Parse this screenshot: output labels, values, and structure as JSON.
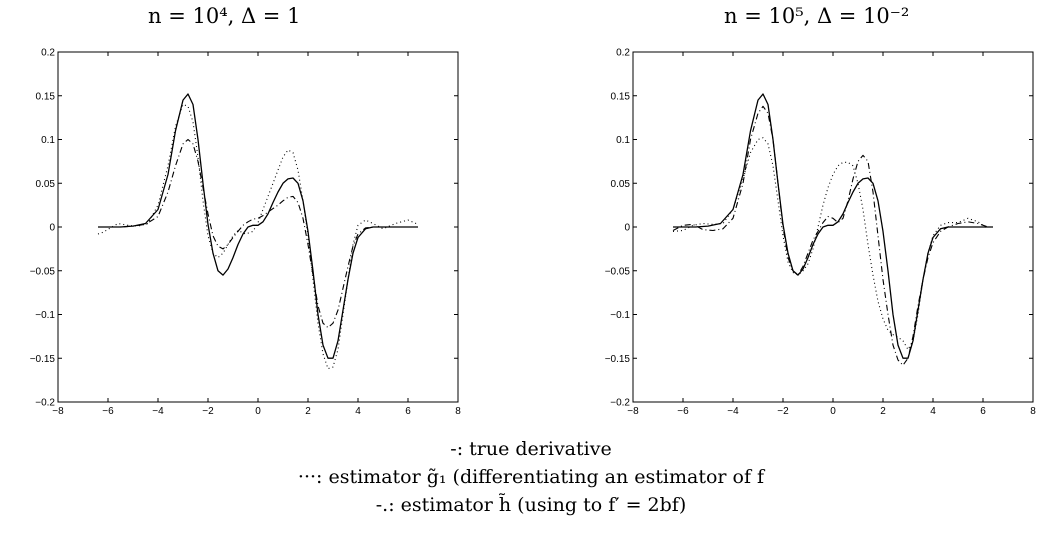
{
  "legend": {
    "line1": "-: true derivative",
    "line2": "···: estimator g̃₁ (differentiating an estimator of f",
    "line3": "-.: estimator h̃ (using to f′ = 2bf)"
  },
  "chart_data": [
    {
      "type": "line",
      "title": "n = 10⁴, Δ = 1",
      "xlim": [
        -8,
        8
      ],
      "ylim": [
        -0.2,
        0.2
      ],
      "xticks": [
        -8,
        -6,
        -4,
        -2,
        0,
        2,
        4,
        6,
        8
      ],
      "yticks": [
        -0.2,
        -0.15,
        -0.1,
        -0.05,
        0,
        0.05,
        0.1,
        0.15,
        0.2
      ],
      "xticklabels": [
        "−8",
        "−6",
        "−4",
        "−2",
        "0",
        "2",
        "4",
        "6",
        "8"
      ],
      "yticklabels": [
        "−0.2",
        "−0.15",
        "−0.1",
        "−0.05",
        "0",
        "0.05",
        "0.1",
        "0.15",
        "0.2"
      ],
      "grid": false,
      "series": [
        {
          "style": "solid",
          "x": [
            -6.4,
            -5.5,
            -5,
            -4.5,
            -4,
            -3.6,
            -3.3,
            -3,
            -2.8,
            -2.6,
            -2.4,
            -2.2,
            -2,
            -1.8,
            -1.6,
            -1.4,
            -1.2,
            -1,
            -0.8,
            -0.6,
            -0.4,
            -0.2,
            0,
            0.2,
            0.4,
            0.6,
            0.8,
            1,
            1.2,
            1.4,
            1.6,
            1.8,
            2,
            2.2,
            2.4,
            2.6,
            2.8,
            3,
            3.2,
            3.4,
            3.6,
            3.8,
            4,
            4.3,
            4.6,
            5,
            5.5,
            6,
            6.4
          ],
          "y": [
            0,
            0,
            0.001,
            0.004,
            0.02,
            0.06,
            0.11,
            0.145,
            0.152,
            0.14,
            0.1,
            0.05,
            0.003,
            -0.03,
            -0.05,
            -0.055,
            -0.048,
            -0.035,
            -0.02,
            -0.008,
            0,
            0.002,
            0.002,
            0.006,
            0.015,
            0.028,
            0.04,
            0.05,
            0.055,
            0.056,
            0.05,
            0.03,
            -0.005,
            -0.05,
            -0.1,
            -0.135,
            -0.15,
            -0.15,
            -0.13,
            -0.095,
            -0.06,
            -0.03,
            -0.012,
            -0.002,
            0,
            0,
            0,
            0,
            0
          ]
        },
        {
          "style": "dotted",
          "x": [
            -6.4,
            -6.2,
            -5.9,
            -5.6,
            -5.2,
            -4.8,
            -4.4,
            -4,
            -3.6,
            -3.3,
            -3,
            -2.8,
            -2.6,
            -2.4,
            -2.2,
            -2,
            -1.8,
            -1.6,
            -1.4,
            -1.2,
            -1,
            -0.8,
            -0.5,
            -0.2,
            0,
            0.2,
            0.4,
            0.6,
            0.8,
            1,
            1.2,
            1.4,
            1.6,
            1.8,
            2,
            2.2,
            2.4,
            2.6,
            2.8,
            3,
            3.2,
            3.4,
            3.6,
            3.8,
            4,
            4.3,
            4.6,
            5,
            5.5,
            6,
            6.4
          ],
          "y": [
            -0.008,
            -0.006,
            -0.001,
            0.004,
            0.002,
            0.001,
            0.004,
            0.025,
            0.07,
            0.115,
            0.14,
            0.138,
            0.12,
            0.08,
            0.03,
            -0.01,
            -0.03,
            -0.035,
            -0.03,
            -0.02,
            -0.01,
            -0.004,
            -0.008,
            -0.005,
            0.005,
            0.02,
            0.035,
            0.05,
            0.065,
            0.08,
            0.088,
            0.085,
            0.065,
            0.03,
            -0.01,
            -0.06,
            -0.11,
            -0.145,
            -0.162,
            -0.16,
            -0.14,
            -0.1,
            -0.06,
            -0.02,
            0.002,
            0.008,
            0.004,
            -0.002,
            0.004,
            0.008,
            0.003
          ]
        },
        {
          "style": "dashdot",
          "x": [
            -6.4,
            -5.5,
            -5,
            -4.5,
            -4,
            -3.6,
            -3.3,
            -3,
            -2.8,
            -2.6,
            -2.4,
            -2.2,
            -2,
            -1.8,
            -1.6,
            -1.4,
            -1.2,
            -1,
            -0.8,
            -0.6,
            -0.4,
            -0.2,
            0,
            0.2,
            0.4,
            0.6,
            0.8,
            1,
            1.2,
            1.4,
            1.6,
            1.8,
            2,
            2.2,
            2.4,
            2.6,
            2.8,
            3,
            3.2,
            3.4,
            3.6,
            3.8,
            4,
            4.3,
            4.6,
            5,
            5.5,
            6,
            6.4
          ],
          "y": [
            0,
            0,
            0.001,
            0.003,
            0.012,
            0.04,
            0.07,
            0.095,
            0.1,
            0.095,
            0.075,
            0.045,
            0.015,
            -0.01,
            -0.022,
            -0.025,
            -0.02,
            -0.012,
            -0.005,
            0.002,
            0.006,
            0.009,
            0.01,
            0.013,
            0.017,
            0.021,
            0.025,
            0.03,
            0.034,
            0.035,
            0.028,
            0.01,
            -0.02,
            -0.055,
            -0.09,
            -0.11,
            -0.115,
            -0.11,
            -0.095,
            -0.07,
            -0.045,
            -0.022,
            -0.008,
            -0.001,
            0,
            0,
            0,
            0,
            0
          ]
        }
      ]
    },
    {
      "type": "line",
      "title": "n = 10⁵, Δ = 10⁻²",
      "xlim": [
        -8,
        8
      ],
      "ylim": [
        -0.2,
        0.2
      ],
      "xticks": [
        -8,
        -6,
        -4,
        -2,
        0,
        2,
        4,
        6,
        8
      ],
      "yticks": [
        -0.2,
        -0.15,
        -0.1,
        -0.05,
        0,
        0.05,
        0.1,
        0.15,
        0.2
      ],
      "xticklabels": [
        "−8",
        "−6",
        "−4",
        "−2",
        "0",
        "2",
        "4",
        "6",
        "8"
      ],
      "yticklabels": [
        "−0.2",
        "−0.15",
        "−0.1",
        "−0.05",
        "0",
        "0.05",
        "0.1",
        "0.15",
        "0.2"
      ],
      "grid": false,
      "series": [
        {
          "style": "solid",
          "x": [
            -6.4,
            -5.5,
            -5,
            -4.5,
            -4,
            -3.6,
            -3.3,
            -3,
            -2.8,
            -2.6,
            -2.4,
            -2.2,
            -2,
            -1.8,
            -1.6,
            -1.4,
            -1.2,
            -1,
            -0.8,
            -0.6,
            -0.4,
            -0.2,
            0,
            0.2,
            0.4,
            0.6,
            0.8,
            1,
            1.2,
            1.4,
            1.6,
            1.8,
            2,
            2.2,
            2.4,
            2.6,
            2.8,
            3,
            3.2,
            3.4,
            3.6,
            3.8,
            4,
            4.3,
            4.6,
            5,
            5.5,
            6,
            6.4
          ],
          "y": [
            0,
            0,
            0.001,
            0.004,
            0.02,
            0.06,
            0.11,
            0.145,
            0.152,
            0.14,
            0.1,
            0.05,
            0.003,
            -0.03,
            -0.05,
            -0.055,
            -0.048,
            -0.035,
            -0.02,
            -0.008,
            0,
            0.002,
            0.002,
            0.006,
            0.015,
            0.028,
            0.04,
            0.05,
            0.055,
            0.056,
            0.05,
            0.03,
            -0.005,
            -0.05,
            -0.1,
            -0.135,
            -0.15,
            -0.15,
            -0.13,
            -0.095,
            -0.06,
            -0.03,
            -0.012,
            -0.002,
            0,
            0,
            0,
            0,
            0
          ]
        },
        {
          "style": "dotted",
          "x": [
            -6.4,
            -6,
            -5.6,
            -5.2,
            -4.8,
            -4.4,
            -4,
            -3.6,
            -3.3,
            -3,
            -2.8,
            -2.6,
            -2.4,
            -2.2,
            -2,
            -1.8,
            -1.6,
            -1.4,
            -1.2,
            -1,
            -0.8,
            -0.6,
            -0.4,
            -0.2,
            0,
            0.2,
            0.4,
            0.6,
            0.8,
            1,
            1.2,
            1.4,
            1.6,
            1.8,
            2,
            2.2,
            2.4,
            2.6,
            2.8,
            3,
            3.2,
            3.4,
            3.6,
            3.8,
            4,
            4.3,
            4.6,
            5,
            5.4,
            5.8,
            6.2
          ],
          "y": [
            -0.005,
            -0.004,
            0.002,
            0.004,
            0.003,
            0.004,
            0.02,
            0.055,
            0.085,
            0.1,
            0.102,
            0.095,
            0.07,
            0.03,
            -0.01,
            -0.04,
            -0.052,
            -0.055,
            -0.05,
            -0.042,
            -0.025,
            0,
            0.025,
            0.045,
            0.06,
            0.07,
            0.074,
            0.074,
            0.07,
            0.05,
            0.02,
            -0.02,
            -0.055,
            -0.085,
            -0.105,
            -0.118,
            -0.123,
            -0.126,
            -0.13,
            -0.14,
            -0.13,
            -0.1,
            -0.06,
            -0.03,
            -0.01,
            0.002,
            0.005,
            0.005,
            0.01,
            0.006,
            -0.002
          ]
        },
        {
          "style": "dashdot",
          "x": [
            -6.4,
            -6,
            -5.6,
            -5.2,
            -4.8,
            -4.4,
            -4,
            -3.6,
            -3.3,
            -3,
            -2.8,
            -2.6,
            -2.4,
            -2.2,
            -2,
            -1.8,
            -1.6,
            -1.4,
            -1.2,
            -1,
            -0.8,
            -0.6,
            -0.4,
            -0.2,
            0,
            0.2,
            0.4,
            0.6,
            0.8,
            1,
            1.2,
            1.4,
            1.6,
            1.8,
            2,
            2.2,
            2.4,
            2.6,
            2.8,
            3,
            3.2,
            3.4,
            3.6,
            3.8,
            4,
            4.3,
            4.6,
            5,
            5.4,
            5.8,
            6.2
          ],
          "y": [
            -0.004,
            0.002,
            0.003,
            -0.003,
            -0.004,
            -0.002,
            0.01,
            0.05,
            0.1,
            0.13,
            0.138,
            0.13,
            0.1,
            0.05,
            0,
            -0.035,
            -0.05,
            -0.055,
            -0.045,
            -0.03,
            -0.015,
            -0.005,
            0.005,
            0.012,
            0.01,
            0.005,
            0.01,
            0.03,
            0.055,
            0.075,
            0.082,
            0.075,
            0.04,
            -0.01,
            -0.06,
            -0.1,
            -0.135,
            -0.152,
            -0.158,
            -0.15,
            -0.125,
            -0.09,
            -0.06,
            -0.035,
            -0.018,
            -0.005,
            0,
            0.004,
            0.006,
            0.004,
            0
          ]
        }
      ]
    }
  ]
}
